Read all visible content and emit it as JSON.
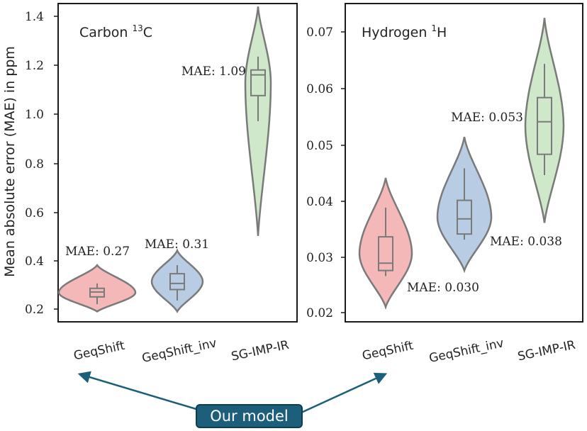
{
  "ylabel": "Mean absolute error (MAE) in ppm",
  "badge_label": "Our model",
  "categories": [
    "GeqShift",
    "GeqShift_inv",
    "SG-IMP-IR"
  ],
  "colors": {
    "GeqShift": "#f4b8b8",
    "GeqShift_inv": "#b8cce4",
    "SG-IMP-IR": "#cfe8c9",
    "outline": "#7a7a7a",
    "arrow": "#1d5f7a"
  },
  "chart_data": [
    {
      "type": "violin",
      "panel_title": "Carbon",
      "panel_title_superscript": "13",
      "panel_title_suffix": "C",
      "ylim": [
        0.18,
        1.45
      ],
      "yticks": [
        "0.2",
        "0.4",
        "0.6",
        "0.8",
        "1.0",
        "1.2",
        "1.4"
      ],
      "categories": [
        "GeqShift",
        "GeqShift_inv",
        "SG-IMP-IR"
      ],
      "series": [
        {
          "category": "GeqShift",
          "min": 0.22,
          "q1": 0.25,
          "median": 0.27,
          "q3": 0.285,
          "max": 0.305,
          "violin_min": 0.19,
          "violin_max": 0.38,
          "mae_label": "MAE: 0.27"
        },
        {
          "category": "GeqShift_inv",
          "min": 0.235,
          "q1": 0.28,
          "median": 0.305,
          "q3": 0.345,
          "max": 0.38,
          "violin_min": 0.19,
          "violin_max": 0.44,
          "mae_label": "MAE: 0.31"
        },
        {
          "category": "SG-IMP-IR",
          "min": 0.97,
          "q1": 1.075,
          "median": 1.16,
          "q3": 1.18,
          "max": 1.235,
          "violin_min": 0.5,
          "violin_max": 1.44,
          "mae_label": "MAE: 1.09"
        }
      ]
    },
    {
      "type": "violin",
      "panel_title": "Hydrogen",
      "panel_title_superscript": "1",
      "panel_title_suffix": "H",
      "ylim": [
        0.0205,
        0.0755
      ],
      "yticks": [
        "0.02",
        "0.03",
        "0.04",
        "0.05",
        "0.06",
        "0.07"
      ],
      "categories": [
        "GeqShift",
        "GeqShift_inv",
        "SG-IMP-IR"
      ],
      "series": [
        {
          "category": "GeqShift",
          "min": 0.0265,
          "q1": 0.0275,
          "median": 0.0288,
          "q3": 0.0335,
          "max": 0.0387,
          "violin_min": 0.021,
          "violin_max": 0.044,
          "mae_label": "MAE: 0.030"
        },
        {
          "category": "GeqShift_inv",
          "min": 0.033,
          "q1": 0.034,
          "median": 0.0367,
          "q3": 0.04,
          "max": 0.0457,
          "violin_min": 0.0275,
          "violin_max": 0.0513,
          "mae_label": "MAE: 0.038"
        },
        {
          "category": "SG-IMP-IR",
          "min": 0.0445,
          "q1": 0.0482,
          "median": 0.054,
          "q3": 0.0583,
          "max": 0.0643,
          "violin_min": 0.036,
          "violin_max": 0.0725,
          "mae_label": "MAE: 0.053"
        }
      ]
    }
  ]
}
